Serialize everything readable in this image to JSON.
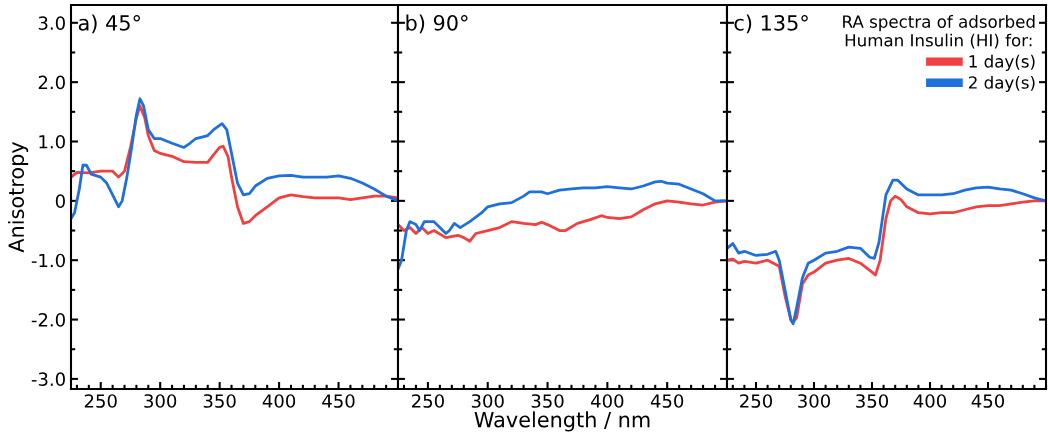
{
  "chart_data": [
    {
      "type": "line",
      "title": "a) 45°",
      "ylabel": "Anisotropy",
      "xlim": [
        225,
        500
      ],
      "xticks": [
        250,
        300,
        350,
        400,
        450
      ],
      "ylim": [
        -3.17,
        3.3
      ],
      "yticks": [
        {
          "value": 3,
          "label": "3.0"
        },
        {
          "value": 2,
          "label": "2.0"
        },
        {
          "value": 1,
          "label": "1.0"
        },
        0,
        {
          "value": -1,
          "label": "-1.0"
        },
        {
          "value": -2,
          "label": "-2.0"
        },
        {
          "value": -3,
          "label": "-3.0"
        }
      ],
      "grid": false,
      "legend": false,
      "series": [
        {
          "color": "#f04040",
          "x": [
            225,
            230,
            240,
            250,
            260,
            265,
            270,
            275,
            280,
            283,
            287,
            290,
            295,
            300,
            310,
            320,
            330,
            340,
            345,
            350,
            353,
            357,
            360,
            365,
            370,
            375,
            380,
            390,
            400,
            410,
            420,
            430,
            440,
            450,
            460,
            470,
            480,
            490,
            500
          ],
          "values": [
            0.4,
            0.48,
            0.47,
            0.5,
            0.5,
            0.4,
            0.5,
            0.9,
            1.4,
            1.6,
            1.4,
            1.1,
            0.85,
            0.8,
            0.75,
            0.66,
            0.65,
            0.65,
            0.78,
            0.9,
            0.92,
            0.75,
            0.4,
            -0.1,
            -0.38,
            -0.35,
            -0.25,
            -0.1,
            0.05,
            0.1,
            0.07,
            0.05,
            0.05,
            0.05,
            0.02,
            0.05,
            0.08,
            0.08,
            0.05
          ]
        },
        {
          "color": "#1f6fdc",
          "x": [
            225,
            228,
            232,
            235,
            238,
            242,
            250,
            255,
            260,
            265,
            268,
            272,
            276,
            280,
            283,
            286,
            290,
            295,
            300,
            310,
            320,
            325,
            330,
            340,
            345,
            352,
            356,
            360,
            365,
            370,
            375,
            380,
            390,
            400,
            410,
            420,
            430,
            440,
            450,
            460,
            470,
            480,
            490,
            500
          ],
          "values": [
            -0.3,
            -0.2,
            0.2,
            0.6,
            0.6,
            0.45,
            0.4,
            0.3,
            0.1,
            -0.1,
            0.0,
            0.4,
            0.9,
            1.45,
            1.72,
            1.6,
            1.2,
            1.05,
            1.05,
            0.97,
            0.9,
            0.97,
            1.05,
            1.1,
            1.2,
            1.3,
            1.2,
            0.8,
            0.3,
            0.1,
            0.12,
            0.25,
            0.38,
            0.42,
            0.43,
            0.4,
            0.4,
            0.4,
            0.42,
            0.38,
            0.3,
            0.2,
            0.08,
            0.0
          ]
        }
      ]
    },
    {
      "type": "line",
      "title": "b) 90°",
      "xlabel": "Wavelength / nm",
      "xlim": [
        225,
        500
      ],
      "xticks": [
        250,
        300,
        350,
        400,
        450
      ],
      "ylim": [
        -3.17,
        3.3
      ],
      "tick_labels": "x",
      "grid": false,
      "legend": false,
      "series": [
        {
          "color": "#f04040",
          "x": [
            225,
            230,
            235,
            240,
            245,
            250,
            255,
            265,
            275,
            280,
            285,
            290,
            300,
            310,
            320,
            330,
            340,
            345,
            350,
            360,
            365,
            375,
            385,
            395,
            400,
            410,
            420,
            430,
            440,
            450,
            460,
            470,
            480,
            490,
            500
          ],
          "values": [
            -0.4,
            -0.5,
            -0.45,
            -0.55,
            -0.45,
            -0.55,
            -0.5,
            -0.62,
            -0.58,
            -0.62,
            -0.68,
            -0.55,
            -0.5,
            -0.45,
            -0.35,
            -0.38,
            -0.4,
            -0.36,
            -0.4,
            -0.5,
            -0.5,
            -0.38,
            -0.32,
            -0.25,
            -0.28,
            -0.3,
            -0.27,
            -0.15,
            -0.05,
            0.0,
            -0.02,
            -0.05,
            -0.07,
            -0.02,
            0.0
          ]
        },
        {
          "color": "#1f6fdc",
          "x": [
            225,
            228,
            232,
            235,
            240,
            243,
            247,
            255,
            260,
            265,
            268,
            272,
            277,
            285,
            295,
            300,
            310,
            320,
            330,
            335,
            345,
            350,
            360,
            370,
            380,
            390,
            400,
            410,
            420,
            430,
            440,
            445,
            450,
            460,
            470,
            480,
            490,
            500
          ],
          "values": [
            -1.15,
            -1.0,
            -0.5,
            -0.35,
            -0.4,
            -0.5,
            -0.35,
            -0.35,
            -0.45,
            -0.55,
            -0.5,
            -0.38,
            -0.45,
            -0.35,
            -0.2,
            -0.1,
            -0.05,
            -0.03,
            0.08,
            0.15,
            0.15,
            0.12,
            0.18,
            0.2,
            0.22,
            0.22,
            0.24,
            0.22,
            0.2,
            0.25,
            0.32,
            0.33,
            0.3,
            0.28,
            0.2,
            0.12,
            0.0,
            0.0
          ]
        }
      ]
    },
    {
      "type": "line",
      "title": "c) 135°",
      "legend_title": "RA spectra of adsorbed\nHuman Insulin (HI) for:",
      "xlim": [
        225,
        500
      ],
      "xticks": [
        250,
        300,
        350,
        400,
        450
      ],
      "ylim": [
        -3.17,
        3.3
      ],
      "tick_labels": "x",
      "grid": false,
      "legend": "top right",
      "series": [
        {
          "name": "1 day(s)",
          "color": "#f04040",
          "x": [
            225,
            230,
            235,
            240,
            250,
            260,
            265,
            270,
            275,
            280,
            282,
            285,
            290,
            295,
            300,
            310,
            320,
            330,
            340,
            350,
            353,
            357,
            362,
            366,
            370,
            375,
            380,
            390,
            400,
            410,
            420,
            430,
            440,
            450,
            460,
            470,
            480,
            490,
            500
          ],
          "values": [
            -1.0,
            -0.98,
            -1.05,
            -1.02,
            -1.05,
            -1.0,
            -1.05,
            -1.1,
            -1.6,
            -2.0,
            -2.05,
            -1.97,
            -1.4,
            -1.25,
            -1.2,
            -1.05,
            -1.0,
            -0.97,
            -1.05,
            -1.2,
            -1.25,
            -1.0,
            -0.3,
            0.0,
            0.08,
            0.02,
            -0.1,
            -0.2,
            -0.22,
            -0.2,
            -0.2,
            -0.15,
            -0.1,
            -0.08,
            -0.08,
            -0.05,
            -0.02,
            0.0,
            0.0
          ]
        },
        {
          "name": "2 day(s)",
          "color": "#1f6fdc",
          "x": [
            225,
            230,
            235,
            240,
            250,
            260,
            267,
            270,
            275,
            280,
            282,
            285,
            290,
            295,
            300,
            310,
            320,
            330,
            340,
            348,
            352,
            356,
            362,
            368,
            372,
            380,
            390,
            400,
            410,
            420,
            430,
            440,
            450,
            460,
            470,
            480,
            490,
            500
          ],
          "values": [
            -0.8,
            -0.72,
            -0.88,
            -0.85,
            -0.92,
            -0.9,
            -0.85,
            -1.0,
            -1.5,
            -2.0,
            -2.07,
            -1.8,
            -1.3,
            -1.05,
            -1.0,
            -0.88,
            -0.85,
            -0.78,
            -0.8,
            -0.95,
            -0.97,
            -0.7,
            0.1,
            0.35,
            0.35,
            0.2,
            0.1,
            0.1,
            0.1,
            0.12,
            0.18,
            0.22,
            0.23,
            0.2,
            0.18,
            0.12,
            0.05,
            0.0
          ]
        }
      ]
    }
  ]
}
